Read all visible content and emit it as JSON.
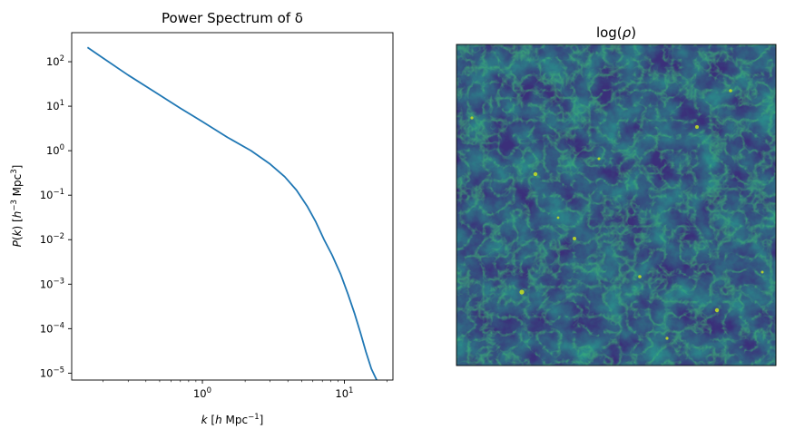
{
  "chart_data": [
    {
      "type": "line",
      "title": "Power Spectrum of δ",
      "xlabel": "k [h Mpc⁻¹]",
      "ylabel": "P(k) [h⁻³ Mpc³]",
      "xscale": "log",
      "yscale": "log",
      "xlim": [
        0.12,
        22
      ],
      "ylim": [
        7e-06,
        450
      ],
      "grid": false,
      "x_ticks": [
        {
          "value": 1,
          "label": "10^0"
        },
        {
          "value": 10,
          "label": "10^1"
        }
      ],
      "y_ticks": [
        {
          "value": 1e-05,
          "label": "10^-5"
        },
        {
          "value": 0.0001,
          "label": "10^-4"
        },
        {
          "value": 0.001,
          "label": "10^-3"
        },
        {
          "value": 0.01,
          "label": "10^-2"
        },
        {
          "value": 0.1,
          "label": "10^-1"
        },
        {
          "value": 1,
          "label": "10^0"
        },
        {
          "value": 10,
          "label": "10^1"
        },
        {
          "value": 100,
          "label": "10^2"
        }
      ],
      "series": [
        {
          "color": "#1f77b4",
          "x": [
            0.155,
            0.2,
            0.3,
            0.45,
            0.7,
            1.0,
            1.5,
            2.2,
            3.0,
            3.8,
            4.6,
            5.5,
            6.3,
            7.2,
            8.2,
            9.4,
            10.6,
            11.8,
            13.0,
            14.2,
            15.5,
            16.5,
            17.3
          ],
          "y": [
            210,
            120,
            50,
            22,
            9,
            4.5,
            2.0,
            1.0,
            0.5,
            0.26,
            0.13,
            0.055,
            0.025,
            0.01,
            0.0045,
            0.0017,
            0.0006,
            0.00022,
            8e-05,
            3e-05,
            1.25e-05,
            8.2e-06,
            6e-06
          ]
        }
      ]
    },
    {
      "type": "heatmap",
      "title": "log(ρ)",
      "colormap": "viridis",
      "axes_ticks": false
    }
  ]
}
